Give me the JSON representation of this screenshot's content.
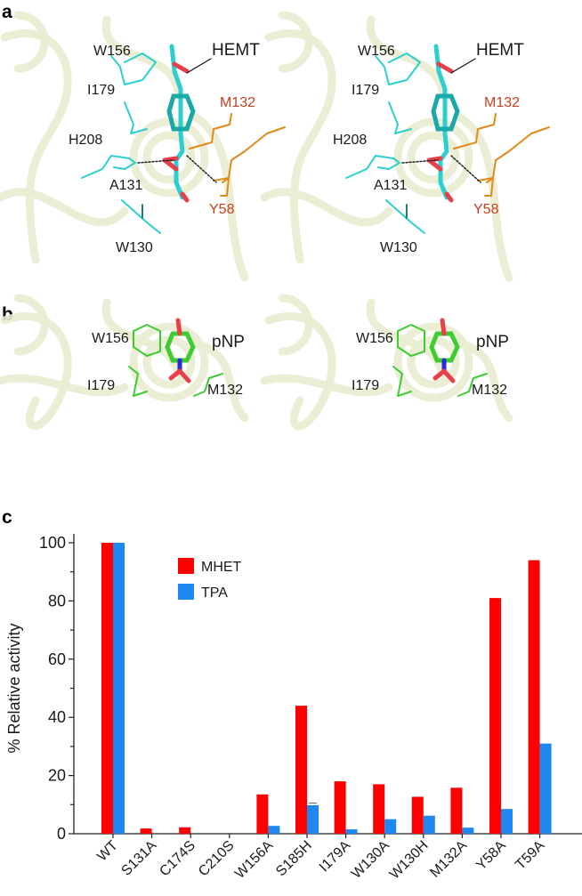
{
  "panels": {
    "a": "a",
    "b": "b",
    "c": "c"
  },
  "panel_a_labels": [
    {
      "text": "W156",
      "color": "black"
    },
    {
      "text": "HEMT",
      "color": "black"
    },
    {
      "text": "I179",
      "color": "black"
    },
    {
      "text": "M132",
      "color": "red"
    },
    {
      "text": "H208",
      "color": "black"
    },
    {
      "text": "A131",
      "color": "black"
    },
    {
      "text": "Y58",
      "color": "red"
    },
    {
      "text": "W130",
      "color": "black"
    }
  ],
  "panel_b_labels": [
    {
      "text": "W156",
      "color": "black"
    },
    {
      "text": "pNP",
      "color": "black"
    },
    {
      "text": "I179",
      "color": "black"
    },
    {
      "text": "M132",
      "color": "black"
    }
  ],
  "colors": {
    "mhet": "#ff0000",
    "tpa": "#1e88f0",
    "ribbon": "#e9ecd0",
    "carbon_cyan": "#2ccfcf",
    "oxygen": "#e8404a",
    "carbon_orange": "#e08a1a",
    "carbon_green": "#3fcc30",
    "nitrogen": "#2a2adc"
  },
  "chart_data": {
    "type": "bar",
    "title": "",
    "xlabel": "",
    "ylabel": "% Relative activity",
    "ylim": [
      0,
      100
    ],
    "yticks": [
      0,
      20,
      40,
      60,
      80,
      100
    ],
    "categories": [
      "WT",
      "S131A",
      "C174S",
      "C210S",
      "W156A",
      "S185H",
      "I179A",
      "W130A",
      "W130H",
      "M132A",
      "Y58A",
      "T59A"
    ],
    "series": [
      {
        "name": "MHET",
        "values": [
          100,
          1.8,
          2.2,
          0,
          13.5,
          44,
          18,
          17,
          12.7,
          15.8,
          81,
          94
        ]
      },
      {
        "name": "TPA",
        "values": [
          100,
          0,
          0,
          0,
          2.7,
          9.8,
          1.5,
          5,
          6.2,
          2.1,
          8.5,
          31
        ]
      }
    ],
    "legend": "top-left"
  }
}
